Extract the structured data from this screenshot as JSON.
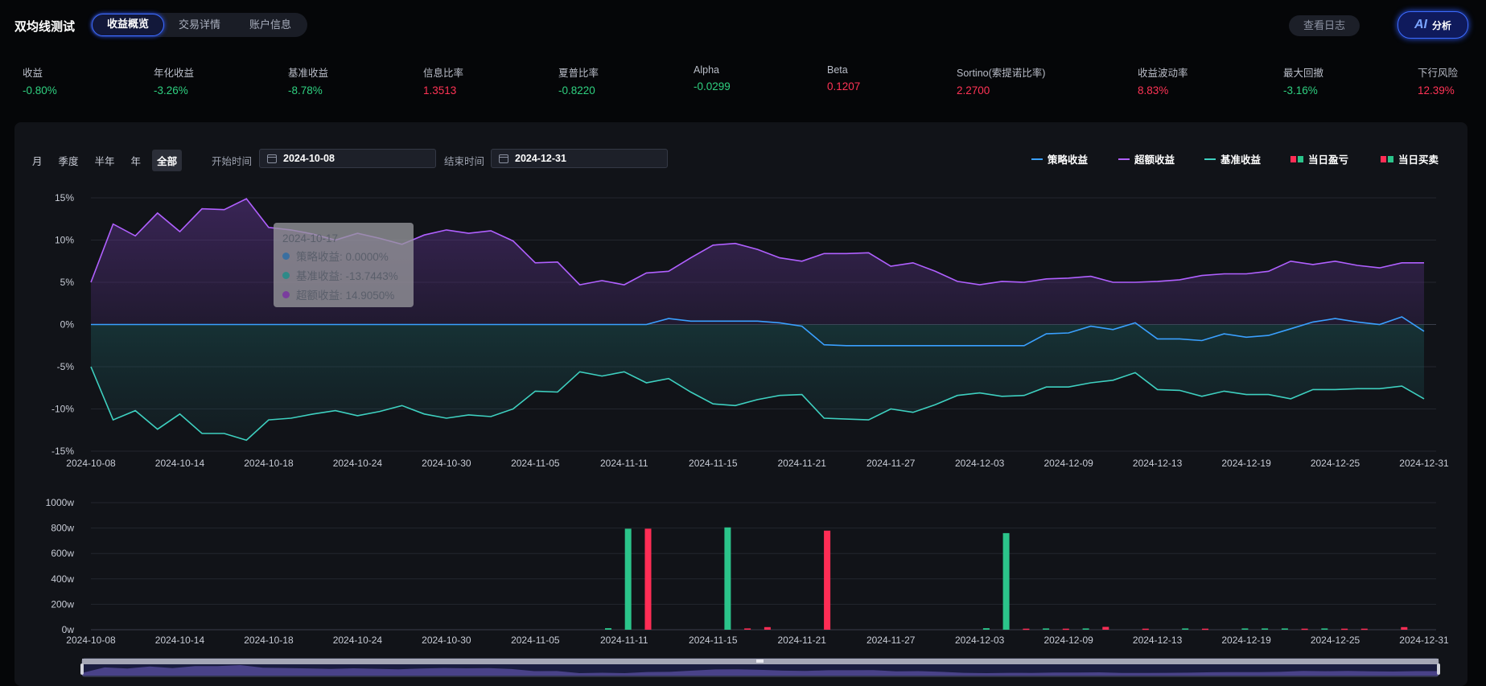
{
  "header": {
    "title": "双均线测试",
    "tabs": [
      {
        "label": "收益概览",
        "active": true
      },
      {
        "label": "交易详情",
        "active": false
      },
      {
        "label": "账户信息",
        "active": false
      }
    ],
    "log_button": "查看日志",
    "ai_mark": "AI",
    "ai_label": "分析"
  },
  "metrics": [
    {
      "label": "收益",
      "value": "-0.80%",
      "color": "#2fd080"
    },
    {
      "label": "年化收益",
      "value": "-3.26%",
      "color": "#2fd080"
    },
    {
      "label": "基准收益",
      "value": "-8.78%",
      "color": "#2fd080"
    },
    {
      "label": "信息比率",
      "value": "1.3513",
      "color": "#ff3355"
    },
    {
      "label": "夏普比率",
      "value": "-0.8220",
      "color": "#2fd080"
    },
    {
      "label": "Alpha",
      "value": "-0.0299",
      "color": "#2fd080"
    },
    {
      "label": "Beta",
      "value": "0.1207",
      "color": "#ff3355"
    },
    {
      "label": "Sortino(索提诺比率)",
      "value": "2.2700",
      "color": "#ff3355"
    },
    {
      "label": "收益波动率",
      "value": "8.83%",
      "color": "#ff3355"
    },
    {
      "label": "最大回撤",
      "value": "-3.16%",
      "color": "#2fd080"
    },
    {
      "label": "下行风险",
      "value": "12.39%",
      "color": "#ff3355"
    }
  ],
  "filters": {
    "periods": [
      {
        "label": "月",
        "active": false
      },
      {
        "label": "季度",
        "active": false
      },
      {
        "label": "半年",
        "active": false
      },
      {
        "label": "年",
        "active": false
      },
      {
        "label": "全部",
        "active": true
      }
    ],
    "start_label": "开始时间",
    "start_value": "2024-10-08",
    "end_label": "结束时间",
    "end_value": "2024-12-31"
  },
  "legend": [
    {
      "label": "策略收益",
      "kind": "line",
      "colors": [
        "#3aa0ff"
      ]
    },
    {
      "label": "超额收益",
      "kind": "line",
      "colors": [
        "#b060ff"
      ]
    },
    {
      "label": "基准收益",
      "kind": "line",
      "colors": [
        "#3ed0c0"
      ]
    },
    {
      "label": "当日盈亏",
      "kind": "squares",
      "colors": [
        "#ff2d55",
        "#2bc48a"
      ]
    },
    {
      "label": "当日买卖",
      "kind": "squares",
      "colors": [
        "#ff2d55",
        "#2bc48a"
      ]
    }
  ],
  "tooltip": {
    "date": "2024-10-17",
    "rows": [
      {
        "label": "策略收益: 0.0000%",
        "color": "#3a6fa0"
      },
      {
        "label": "基准收益: -13.7443%",
        "color": "#2e8a88"
      },
      {
        "label": "超额收益: 14.9050%",
        "color": "#7a3d9e"
      }
    ]
  },
  "chart_data": [
    {
      "type": "line",
      "x_tick_labels": [
        "2024-10-08",
        "2024-10-14",
        "2024-10-18",
        "2024-10-24",
        "2024-10-30",
        "2024-11-05",
        "2024-11-11",
        "2024-11-15",
        "2024-11-21",
        "2024-11-27",
        "2024-12-03",
        "2024-12-09",
        "2024-12-13",
        "2024-12-19",
        "2024-12-25",
        "2024-12-31"
      ],
      "y_tick_labels": [
        "15%",
        "10%",
        "5%",
        "0%",
        "-5%",
        "-10%",
        "-15%"
      ],
      "ylim": [
        -15,
        15
      ],
      "grid": true,
      "series": [
        {
          "name": "超额收益",
          "color": "#b060ff",
          "values": [
            5.0,
            11.9,
            10.5,
            13.2,
            11.0,
            13.7,
            13.6,
            14.9,
            11.5,
            11.2,
            10.7,
            10.0,
            10.8,
            10.2,
            9.5,
            10.6,
            11.2,
            10.8,
            11.1,
            9.9,
            7.3,
            7.4,
            4.7,
            5.2,
            4.7,
            6.1,
            6.3,
            7.9,
            9.4,
            9.6,
            8.9,
            7.9,
            7.5,
            8.4,
            8.4,
            8.5,
            6.9,
            7.3,
            6.3,
            5.1,
            4.7,
            5.1,
            5.0,
            5.4,
            5.5,
            5.7,
            5.0,
            5.0,
            5.1,
            5.3,
            5.8,
            6.0,
            6.0,
            6.3,
            7.5,
            7.1,
            7.5,
            7.0,
            6.7,
            7.3,
            7.3
          ]
        },
        {
          "name": "策略收益",
          "color": "#3aa0ff",
          "values": [
            0,
            0,
            0,
            0,
            0,
            0,
            0,
            0,
            0,
            0,
            0,
            0,
            0,
            0,
            0,
            0,
            0,
            0,
            0,
            0,
            0,
            0,
            0,
            0,
            0,
            0,
            0.7,
            0.4,
            0.4,
            0.4,
            0.4,
            0.2,
            -0.2,
            -2.4,
            -2.5,
            -2.5,
            -2.5,
            -2.5,
            -2.5,
            -2.5,
            -2.5,
            -2.5,
            -2.5,
            -1.1,
            -1.0,
            -0.2,
            -0.6,
            0.2,
            -1.7,
            -1.7,
            -1.9,
            -1.1,
            -1.5,
            -1.3,
            -0.5,
            0.3,
            0.7,
            0.3,
            0.0,
            0.9,
            -0.8
          ]
        },
        {
          "name": "基准收益",
          "color": "#3ed0c0",
          "values": [
            -5.0,
            -11.3,
            -10.2,
            -12.4,
            -10.6,
            -12.9,
            -12.9,
            -13.7,
            -11.3,
            -11.1,
            -10.6,
            -10.2,
            -10.8,
            -10.3,
            -9.6,
            -10.6,
            -11.1,
            -10.7,
            -10.9,
            -10.0,
            -7.9,
            -8.0,
            -5.6,
            -6.1,
            -5.6,
            -6.9,
            -6.4,
            -8.0,
            -9.4,
            -9.6,
            -8.9,
            -8.4,
            -8.3,
            -11.1,
            -11.2,
            -11.3,
            -10.0,
            -10.4,
            -9.5,
            -8.4,
            -8.1,
            -8.5,
            -8.4,
            -7.4,
            -7.4,
            -6.9,
            -6.6,
            -5.7,
            -7.7,
            -7.8,
            -8.5,
            -7.9,
            -8.3,
            -8.3,
            -8.8,
            -7.7,
            -7.7,
            -7.6,
            -7.6,
            -7.3,
            -8.8
          ]
        }
      ]
    },
    {
      "type": "bar",
      "x_tick_labels": [
        "2024-10-08",
        "2024-10-14",
        "2024-10-18",
        "2024-10-24",
        "2024-10-30",
        "2024-11-05",
        "2024-11-11",
        "2024-11-15",
        "2024-11-21",
        "2024-11-27",
        "2024-12-03",
        "2024-12-09",
        "2024-12-13",
        "2024-12-19",
        "2024-12-25",
        "2024-12-31"
      ],
      "y_tick_labels": [
        "1000w",
        "800w",
        "600w",
        "400w",
        "200w",
        "0w"
      ],
      "ylim": [
        0,
        1000
      ],
      "grid": true,
      "series": [
        {
          "name": "green",
          "color": "#2bc48a",
          "points": [
            [
              26,
              12
            ],
            [
              27,
              795
            ],
            [
              32,
              805
            ],
            [
              45,
              12
            ],
            [
              46,
              760
            ],
            [
              48,
              10
            ],
            [
              50,
              10
            ],
            [
              55,
              10
            ],
            [
              58,
              10
            ],
            [
              59,
              10
            ],
            [
              60,
              10
            ],
            [
              62,
              10
            ]
          ]
        },
        {
          "name": "red",
          "color": "#ff2d55",
          "points": [
            [
              28,
              795
            ],
            [
              33,
              10
            ],
            [
              34,
              20
            ],
            [
              37,
              780
            ],
            [
              47,
              8
            ],
            [
              49,
              8
            ],
            [
              51,
              22
            ],
            [
              53,
              8
            ],
            [
              56,
              8
            ],
            [
              61,
              8
            ],
            [
              63,
              8
            ],
            [
              64,
              8
            ],
            [
              66,
              20
            ]
          ]
        }
      ]
    }
  ]
}
